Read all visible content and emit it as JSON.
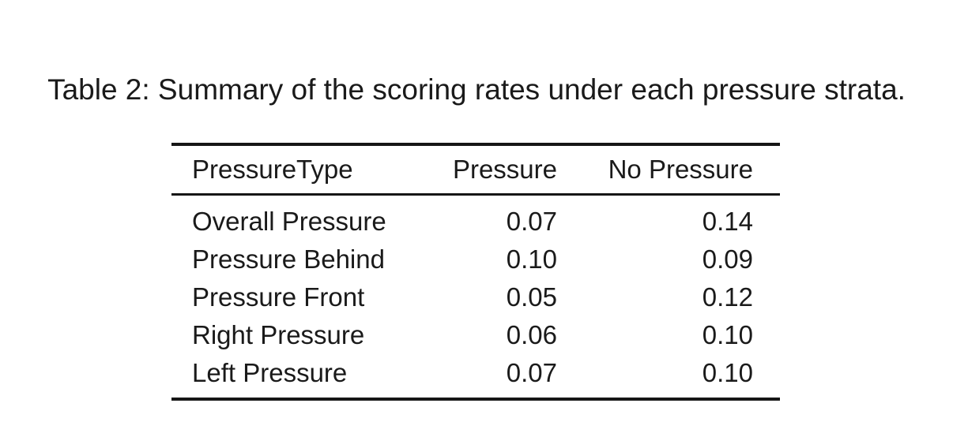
{
  "caption": "Table 2: Summary of the scoring rates under each pressure strata.",
  "table": {
    "columns": [
      {
        "label": "PressureType",
        "align": "left"
      },
      {
        "label": "Pressure",
        "align": "right"
      },
      {
        "label": "No Pressure",
        "align": "right"
      }
    ],
    "rows": [
      {
        "pressure_type": "Overall Pressure",
        "pressure": "0.07",
        "no_pressure": "0.14"
      },
      {
        "pressure_type": "Pressure Behind",
        "pressure": "0.10",
        "no_pressure": "0.09"
      },
      {
        "pressure_type": "Pressure Front",
        "pressure": "0.05",
        "no_pressure": "0.12"
      },
      {
        "pressure_type": "Right Pressure",
        "pressure": "0.06",
        "no_pressure": "0.10"
      },
      {
        "pressure_type": "Left Pressure",
        "pressure": "0.07",
        "no_pressure": "0.10"
      }
    ]
  },
  "colors": {
    "background": "#ffffff",
    "text": "#1a1a1a",
    "rule": "#161616"
  }
}
